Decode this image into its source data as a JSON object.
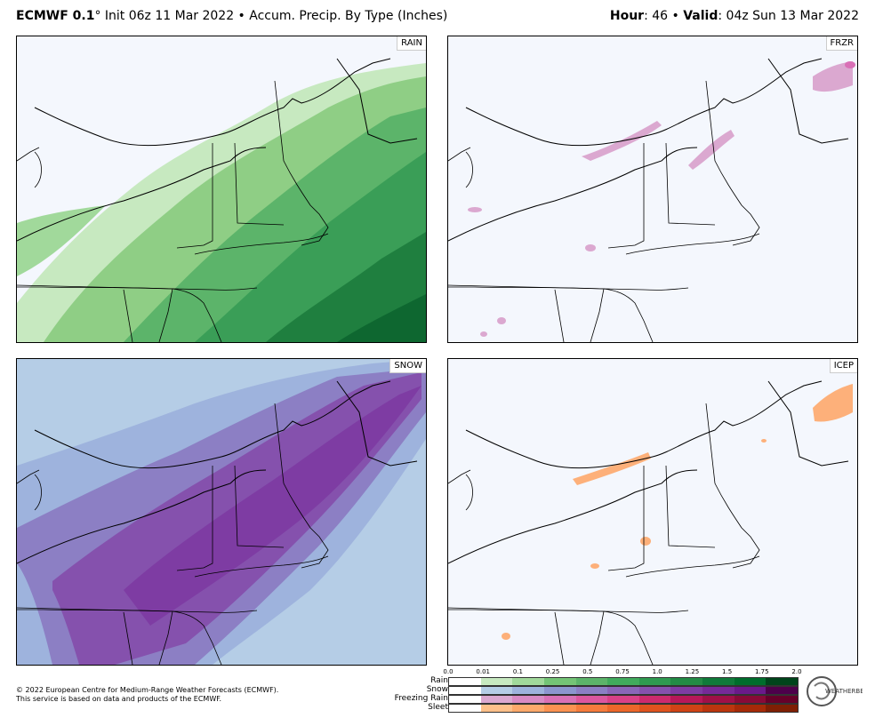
{
  "header": {
    "model": "ECMWF 0.1",
    "degree": "°",
    "init_text": " Init 06z 11 Mar 2022 • Accum. Precip. By Type (Inches)",
    "hour_label": "Hour",
    "hour_value": ": 46 • ",
    "valid_label": "Valid",
    "valid_value": ": 04z Sun 13 Mar 2022"
  },
  "panels": {
    "rain": "RAIN",
    "frzr": "FRZR",
    "snow": "SNOW",
    "icep": "ICEP"
  },
  "footer": {
    "line1": "© 2022 European Centre for Medium-Range Weather Forecasts (ECMWF).",
    "line2": "This service is based on data and products of the ECMWF."
  },
  "legend": {
    "ticks": [
      "0.0",
      "0.01",
      "0.1",
      "0.25",
      "0.5",
      "0.75",
      "1.0",
      "1.25",
      "1.5",
      "1.75",
      "2.0"
    ],
    "rows": [
      {
        "name": "Rain",
        "colors": [
          "#ffffff",
          "#c7e9c0",
          "#a1d99b",
          "#74c476",
          "#5cb46a",
          "#41ab5d",
          "#2f9a50",
          "#238b45",
          "#107a3a",
          "#006d2c",
          "#00441b"
        ]
      },
      {
        "name": "Snow",
        "colors": [
          "#ffffff",
          "#b5cde6",
          "#9eb3dd",
          "#8c96cf",
          "#8c7fc4",
          "#8a66b8",
          "#8551ad",
          "#7e3ca3",
          "#762a98",
          "#6a1a8a",
          "#4d004b"
        ]
      },
      {
        "name": "Freezing Rain",
        "colors": [
          "#ffffff",
          "#dba8d0",
          "#d98ac4",
          "#d970b6",
          "#dc569f",
          "#d94088",
          "#cc2a6e",
          "#b8175a",
          "#a01048",
          "#880a38",
          "#66002a"
        ]
      },
      {
        "name": "Sleet",
        "colors": [
          "#ffffff",
          "#fdc08a",
          "#fda96b",
          "#fb9251",
          "#f57b3c",
          "#ec672a",
          "#df531e",
          "#cf4315",
          "#bb360e",
          "#a52a08",
          "#7f1f04"
        ]
      }
    ]
  },
  "logo": {
    "text": "WEATHERBELL"
  }
}
